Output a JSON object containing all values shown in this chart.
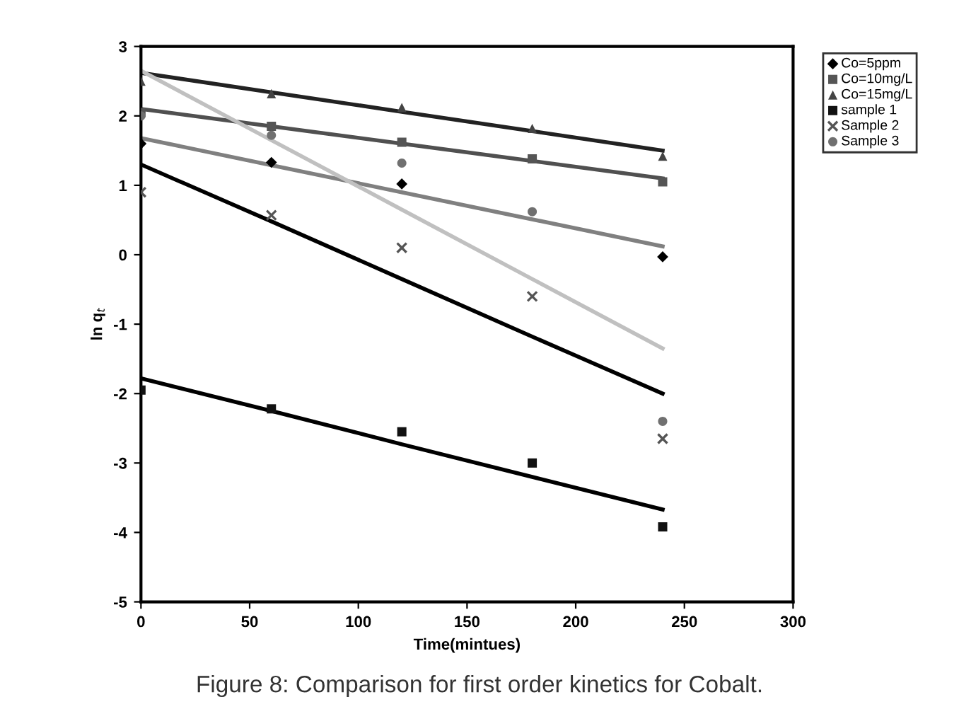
{
  "chart_data": {
    "type": "scatter",
    "xlabel": "Time(mintues)",
    "ylabel": "ln q$_{t}$",
    "xlim": [
      0,
      300
    ],
    "xticks": [
      0,
      50,
      100,
      150,
      200,
      250,
      300
    ],
    "ylim": [
      -5,
      3
    ],
    "yticks": [
      -5,
      -4,
      -3,
      -2,
      -1,
      0,
      1,
      2,
      3
    ],
    "grid": false,
    "legend": "top right",
    "x": [
      0,
      60,
      120,
      180,
      240
    ],
    "series": [
      {
        "name": "Co=5ppm",
        "marker": "diamond",
        "color": "#000000",
        "values": [
          1.6,
          1.33,
          1.02,
          null,
          -0.03
        ]
      },
      {
        "name": "Co=10mg/L",
        "marker": "square",
        "color": "#555555",
        "values": [
          2.05,
          1.85,
          1.62,
          1.38,
          1.05
        ]
      },
      {
        "name": "Co=15mg/L",
        "marker": "triangle",
        "color": "#444444",
        "values": [
          2.5,
          2.32,
          2.12,
          1.82,
          1.42
        ]
      },
      {
        "name": "sample 1",
        "marker": "square",
        "color": "#111111",
        "values": [
          -1.95,
          -2.22,
          -2.55,
          -3.0,
          -3.92
        ]
      },
      {
        "name": "Sample 2",
        "marker": "cross",
        "color": "#555555",
        "values": [
          0.9,
          0.57,
          0.1,
          -0.6,
          -2.65
        ]
      },
      {
        "name": "Sample 3",
        "marker": "circle",
        "color": "#707070",
        "values": [
          2.0,
          1.72,
          1.32,
          0.62,
          -2.4
        ]
      },
      {
        "type": "line",
        "marker": "none",
        "color": "#222222",
        "values": [
          2.62,
          2.34,
          2.06,
          1.78,
          1.5
        ]
      },
      {
        "type": "line",
        "marker": "none",
        "color": "#505050",
        "values": [
          2.1,
          1.85,
          1.6,
          1.35,
          1.1
        ]
      },
      {
        "type": "line",
        "marker": "none",
        "color": "#808080",
        "values": [
          1.68,
          1.29,
          0.9,
          0.51,
          0.12
        ]
      },
      {
        "type": "line",
        "marker": "none",
        "color": "#000000",
        "values": [
          -1.78,
          -2.25,
          -2.73,
          -3.2,
          -3.67
        ]
      },
      {
        "type": "line",
        "marker": "none",
        "color": "#000000",
        "values": [
          1.3,
          0.48,
          -0.35,
          -1.18,
          -2.0
        ]
      },
      {
        "type": "line",
        "marker": "none",
        "color": "#c0c0c0",
        "values": [
          2.65,
          1.65,
          0.65,
          -0.35,
          -1.35
        ]
      }
    ],
    "annotations": [
      "Figure 8: Comparison for first order kinetics for Cobalt."
    ]
  }
}
